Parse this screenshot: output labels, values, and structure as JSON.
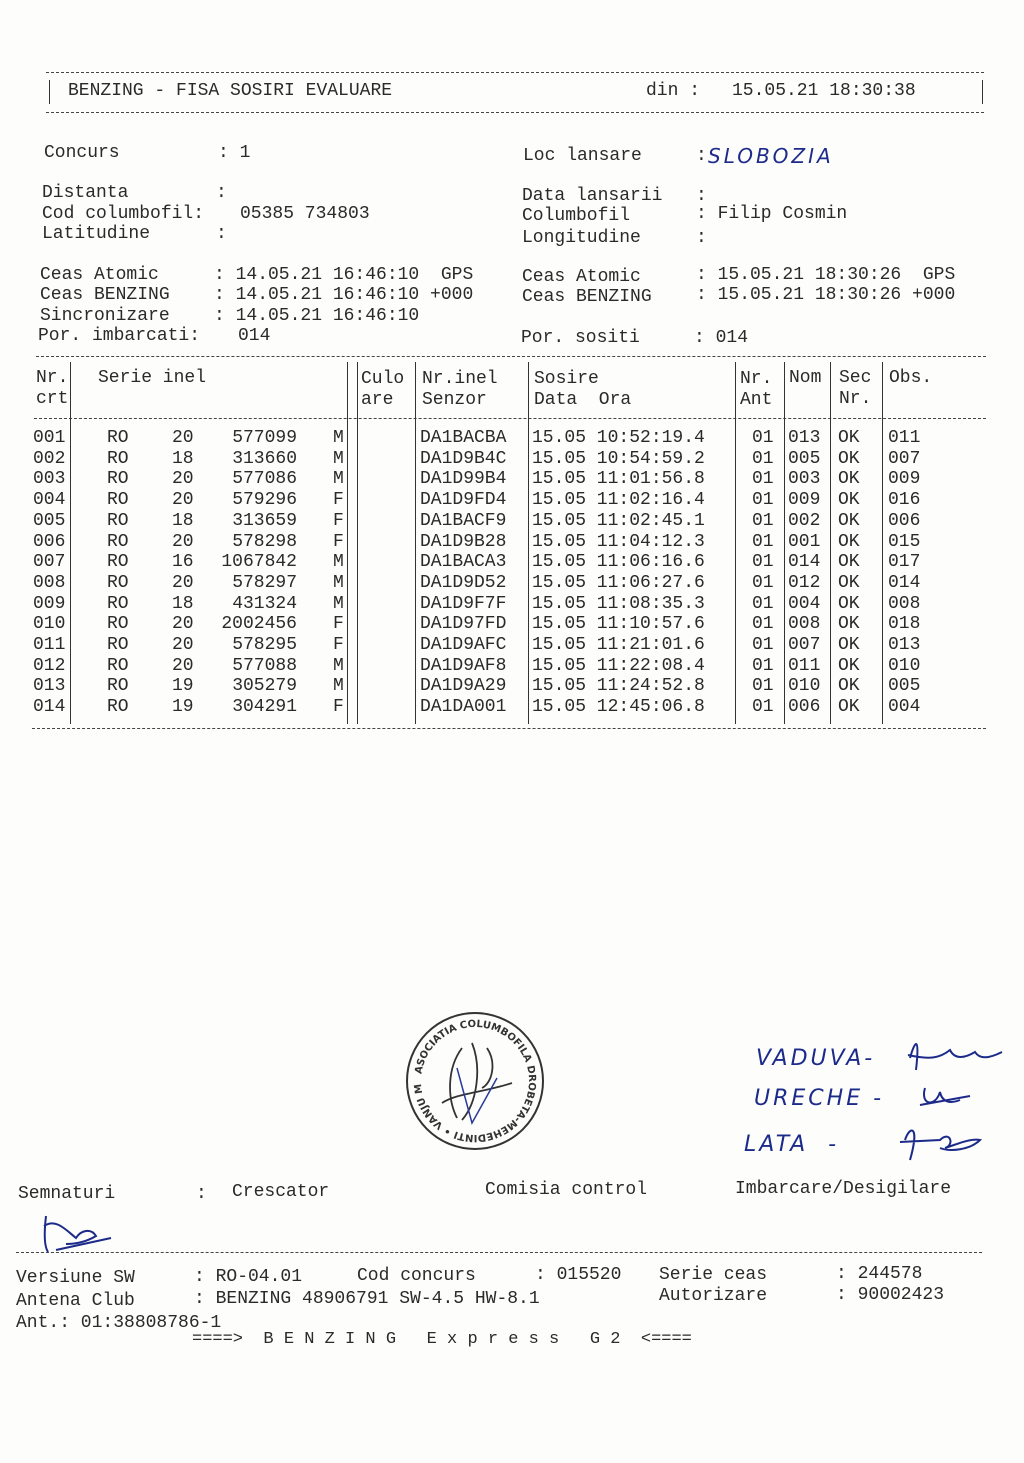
{
  "header": {
    "title": "BENZING - FISA SOSIRI EVALUARE",
    "din_label": "din :",
    "din_value": "15.05.21 18:30:38"
  },
  "info": {
    "concurs_label": "Concurs",
    "concurs_value": ": 1",
    "loc_label": "Loc lansare",
    "loc_value": "SLOBOZIA",
    "distanta_label": "Distanta",
    "distanta_value": ":",
    "data_lansarii_label": "Data lansarii",
    "data_lansarii_value": ":",
    "cod_label": "Cod columbofil:",
    "cod_value": "05385 734803",
    "columbofil_label": "Columbofil",
    "columbofil_value": ": Filip Cosmin",
    "lat_label": "Latitudine",
    "lat_value": ":",
    "long_label": "Longitudine",
    "long_value": ":",
    "ceas_atomic_label": "Ceas Atomic",
    "ceas_atomic_value": ": 14.05.21 16:46:10  GPS",
    "ceas_benzing_label": "Ceas BENZING",
    "ceas_benzing_value": ": 14.05.21 16:46:10 +000",
    "ceas_atomic2_label": "Ceas Atomic",
    "ceas_atomic2_value": ": 15.05.21 18:30:26  GPS",
    "ceas_benzing2_label": "Ceas BENZING",
    "ceas_benzing2_value": ": 15.05.21 18:30:26 +000",
    "sincronizare_label": "Sincronizare",
    "sincronizare_value": ": 14.05.21 16:46:10",
    "imbarcati_label": "Por. imbarcati:",
    "imbarcati_value": "014",
    "sositi_label": "Por. sositi",
    "sositi_value": ": 014"
  },
  "table": {
    "headers": {
      "nr1": "Nr.",
      "nr2": "crt",
      "serie": "Serie inel",
      "culo1": "Culo",
      "culo2": "are",
      "nrinel1": "Nr.inel",
      "nrinel2": "Senzor",
      "sosire1": "Sosire",
      "sosire2": "Data  Ora",
      "ant1": "Nr.",
      "ant2": "Ant",
      "nom": "Nom",
      "sec1": "Sec",
      "sec2": "Nr.",
      "obs": "Obs."
    },
    "rows": [
      [
        "001",
        "RO",
        "20",
        "577099",
        "M",
        "DA1BACBA",
        "15.05 10:52:19.4",
        "01",
        "013",
        "OK",
        "011"
      ],
      [
        "002",
        "RO",
        "18",
        "313660",
        "M",
        "DA1D9B4C",
        "15.05 10:54:59.2",
        "01",
        "005",
        "OK",
        "007"
      ],
      [
        "003",
        "RO",
        "20",
        "577086",
        "M",
        "DA1D99B4",
        "15.05 11:01:56.8",
        "01",
        "003",
        "OK",
        "009"
      ],
      [
        "004",
        "RO",
        "20",
        "579296",
        "F",
        "DA1D9FD4",
        "15.05 11:02:16.4",
        "01",
        "009",
        "OK",
        "016"
      ],
      [
        "005",
        "RO",
        "18",
        "313659",
        "F",
        "DA1BACF9",
        "15.05 11:02:45.1",
        "01",
        "002",
        "OK",
        "006"
      ],
      [
        "006",
        "RO",
        "20",
        "578298",
        "F",
        "DA1D9B28",
        "15.05 11:04:12.3",
        "01",
        "001",
        "OK",
        "015"
      ],
      [
        "007",
        "RO",
        "16",
        "1067842",
        "M",
        "DA1BACA3",
        "15.05 11:06:16.6",
        "01",
        "014",
        "OK",
        "017"
      ],
      [
        "008",
        "RO",
        "20",
        "578297",
        "M",
        "DA1D9D52",
        "15.05 11:06:27.6",
        "01",
        "012",
        "OK",
        "014"
      ],
      [
        "009",
        "RO",
        "18",
        "431324",
        "M",
        "DA1D9F7F",
        "15.05 11:08:35.3",
        "01",
        "004",
        "OK",
        "008"
      ],
      [
        "010",
        "RO",
        "20",
        "2002456",
        "F",
        "DA1D97FD",
        "15.05 11:10:57.6",
        "01",
        "008",
        "OK",
        "018"
      ],
      [
        "011",
        "RO",
        "20",
        "578295",
        "F",
        "DA1D9AFC",
        "15.05 11:21:01.6",
        "01",
        "007",
        "OK",
        "013"
      ],
      [
        "012",
        "RO",
        "20",
        "577088",
        "M",
        "DA1D9AF8",
        "15.05 11:22:08.4",
        "01",
        "011",
        "OK",
        "010"
      ],
      [
        "013",
        "RO",
        "19",
        "305279",
        "M",
        "DA1D9A29",
        "15.05 11:24:52.8",
        "01",
        "010",
        "OK",
        "005"
      ],
      [
        "014",
        "RO",
        "19",
        "304291",
        "F",
        "DA1DA001",
        "15.05 12:45:06.8",
        "01",
        "006",
        "OK",
        "004"
      ]
    ]
  },
  "stamp": {
    "text": "ASOCIATIA COLUMBOFILA DROBETA-MEHEDINTI • VANJU MARE •"
  },
  "handwritten": {
    "line1": "VADUVA-",
    "line2": "URECHE -",
    "line3": "LATA  -"
  },
  "signatures": {
    "label": "Semnaturi",
    "colon": ":",
    "crescator": "Crescator",
    "comisia": "Comisia control",
    "imbarcare": "Imbarcare/Desigilare"
  },
  "footer": {
    "versiune_label": "Versiune SW",
    "versiune_value": ": RO-04.01",
    "cod_concurs_label": "Cod concurs",
    "cod_concurs_value": ": 015520",
    "serie_ceas_label": "Serie ceas",
    "serie_ceas_value": ": 244578",
    "antena_label": "Antena Club",
    "antena_value": ": BENZING 48906791 SW-4.5 HW-8.1",
    "autorizare_label": "Autorizare",
    "autorizare_value": ": 90002423",
    "ant_line": "Ant.: 01:38808786-1",
    "banner": "====>  B E N Z I N G   E x p r e s s   G 2  <===="
  }
}
